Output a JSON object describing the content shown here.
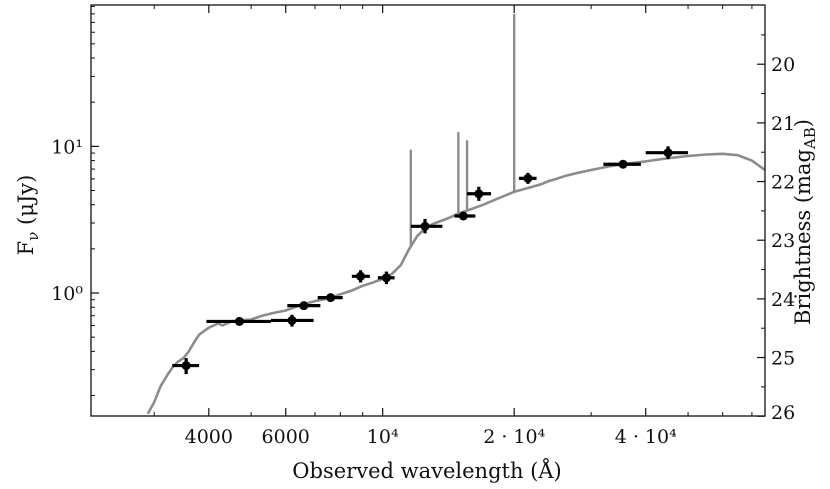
{
  "chart_data": {
    "type": "scatter",
    "title": "",
    "xlabel": "Observed wavelength (Å)",
    "ylabel_left": {
      "base": "F",
      "sub": "ν",
      "rest": " (μJy)"
    },
    "ylabel_right": {
      "base": "Brightness (mag",
      "sub": "AB",
      "rest": ")"
    },
    "x_scale": "log",
    "xlim": [
      2150,
      75000
    ],
    "y_scale": "log",
    "ylim": [
      0.145,
      92
    ],
    "grid": false,
    "legend": "none",
    "x_ticks": [
      {
        "value": 4000,
        "label": "4000"
      },
      {
        "value": 6000,
        "label": "6000"
      },
      {
        "value": 10000,
        "label": "10⁴"
      },
      {
        "value": 20000,
        "label": "2 · 10⁴"
      },
      {
        "value": 40000,
        "label": "4 · 10⁴"
      }
    ],
    "y_ticks_left": [
      {
        "value": 1,
        "label": "10⁰"
      },
      {
        "value": 10,
        "label": "10¹"
      }
    ],
    "y_ticks_right": [
      {
        "value": 20,
        "label": "20"
      },
      {
        "value": 21,
        "label": "21"
      },
      {
        "value": 22,
        "label": "22"
      },
      {
        "value": 23,
        "label": "23"
      },
      {
        "value": 24,
        "label": "24"
      },
      {
        "value": 25,
        "label": "25"
      },
      {
        "value": 26,
        "label": "26"
      }
    ],
    "series": [
      {
        "kind": "model_spectrum",
        "color": "#8c8c8c",
        "x": [
          2900,
          3000,
          3100,
          3200,
          3300,
          3400,
          3500,
          3600,
          3700,
          3800,
          4000,
          4200,
          4300,
          4500,
          4700,
          5000,
          5300,
          5600,
          6000,
          6500,
          7000,
          7500,
          8000,
          8500,
          9000,
          9500,
          10000,
          10500,
          11000,
          11500,
          12000,
          12500,
          13000,
          14000,
          15000,
          16000,
          17000,
          18000,
          19000,
          20000,
          21000,
          22000,
          23000,
          24000,
          25000,
          26000,
          28000,
          30000,
          33000,
          36000,
          40000,
          45000,
          50000,
          55000,
          60000,
          65000,
          70000,
          75000
        ],
        "y": [
          0.15,
          0.18,
          0.23,
          0.27,
          0.31,
          0.34,
          0.36,
          0.4,
          0.46,
          0.52,
          0.58,
          0.62,
          0.6,
          0.64,
          0.65,
          0.66,
          0.7,
          0.73,
          0.76,
          0.83,
          0.88,
          0.92,
          0.98,
          1.04,
          1.12,
          1.18,
          1.25,
          1.35,
          1.55,
          2.0,
          2.45,
          2.75,
          2.95,
          3.2,
          3.5,
          3.75,
          4.0,
          4.3,
          4.6,
          4.9,
          5.1,
          5.3,
          5.5,
          5.8,
          6.0,
          6.25,
          6.6,
          6.9,
          7.3,
          7.6,
          7.9,
          8.3,
          8.6,
          8.8,
          8.9,
          8.7,
          8.0,
          6.9
        ]
      },
      {
        "kind": "emission_lines",
        "color": "#8c8c8c",
        "lines": [
          {
            "x": 11600,
            "peak": 9.5
          },
          {
            "x": 14900,
            "peak": 12.5
          },
          {
            "x": 15600,
            "peak": 11.0
          },
          {
            "x": 20000,
            "peak": 80
          }
        ]
      },
      {
        "kind": "photometry",
        "color": "#000000",
        "points": [
          {
            "x": 3550,
            "xlo": 3300,
            "xhi": 3800,
            "y": 0.32,
            "ylo": 0.28,
            "yhi": 0.36
          },
          {
            "x": 4700,
            "xlo": 3950,
            "xhi": 5550,
            "y": 0.64,
            "ylo": 0.62,
            "yhi": 0.66
          },
          {
            "x": 6200,
            "xlo": 5550,
            "xhi": 6950,
            "y": 0.65,
            "ylo": 0.59,
            "yhi": 0.71
          },
          {
            "x": 6600,
            "xlo": 6050,
            "xhi": 7200,
            "y": 0.82,
            "ylo": 0.8,
            "yhi": 0.84
          },
          {
            "x": 7600,
            "xlo": 7100,
            "xhi": 8100,
            "y": 0.93,
            "ylo": 0.91,
            "yhi": 0.95
          },
          {
            "x": 8900,
            "xlo": 8500,
            "xhi": 9350,
            "y": 1.3,
            "ylo": 1.18,
            "yhi": 1.43
          },
          {
            "x": 10200,
            "xlo": 9750,
            "xhi": 10650,
            "y": 1.27,
            "ylo": 1.15,
            "yhi": 1.4
          },
          {
            "x": 12500,
            "xlo": 11600,
            "xhi": 13700,
            "y": 2.85,
            "ylo": 2.55,
            "yhi": 3.2
          },
          {
            "x": 15300,
            "xlo": 14600,
            "xhi": 16300,
            "y": 3.35,
            "ylo": 3.25,
            "yhi": 3.45
          },
          {
            "x": 16600,
            "xlo": 15600,
            "xhi": 17700,
            "y": 4.75,
            "ylo": 4.25,
            "yhi": 5.3
          },
          {
            "x": 21500,
            "xlo": 20500,
            "xhi": 22500,
            "y": 6.05,
            "ylo": 5.55,
            "yhi": 6.6
          },
          {
            "x": 35500,
            "xlo": 32000,
            "xhi": 39000,
            "y": 7.55,
            "ylo": 7.35,
            "yhi": 7.75
          },
          {
            "x": 45000,
            "xlo": 40000,
            "xhi": 50000,
            "y": 9.05,
            "ylo": 8.2,
            "yhi": 10.0
          }
        ]
      }
    ]
  }
}
